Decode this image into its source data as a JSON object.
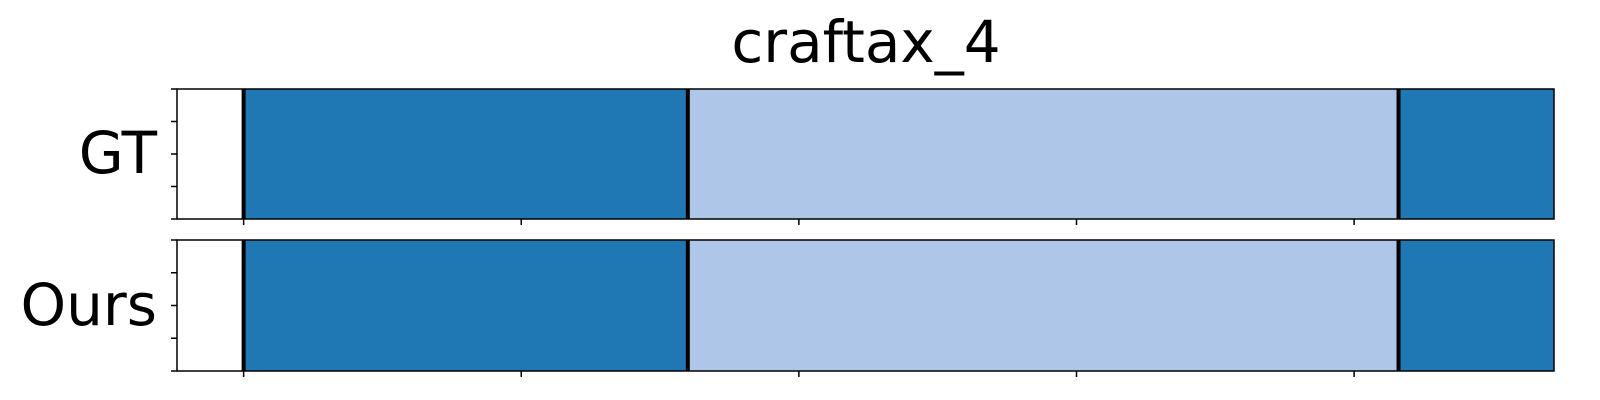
{
  "chart_data": {
    "type": "segmentation-timeline",
    "title": "craftax_4",
    "x_range": [
      0,
      62
    ],
    "x_ticks": [
      3,
      15.5,
      28,
      40.5,
      53,
      65.5
    ],
    "colors": {
      "dark": "#1f77b4",
      "light": "#aec7e8",
      "boundary": "#000000"
    },
    "rows": [
      {
        "label": "GT",
        "segments": [
          {
            "start": 3,
            "end": 23,
            "class": "dark"
          },
          {
            "start": 23,
            "end": 55,
            "class": "light"
          },
          {
            "start": 55,
            "end": 63,
            "class": "dark"
          }
        ],
        "boundaries": [
          3,
          23,
          55,
          63
        ]
      },
      {
        "label": "Ours",
        "segments": [
          {
            "start": 3,
            "end": 23,
            "class": "dark"
          },
          {
            "start": 23,
            "end": 55,
            "class": "light"
          },
          {
            "start": 55,
            "end": 63,
            "class": "dark"
          }
        ],
        "boundaries": [
          3,
          23,
          55,
          63
        ]
      }
    ]
  }
}
